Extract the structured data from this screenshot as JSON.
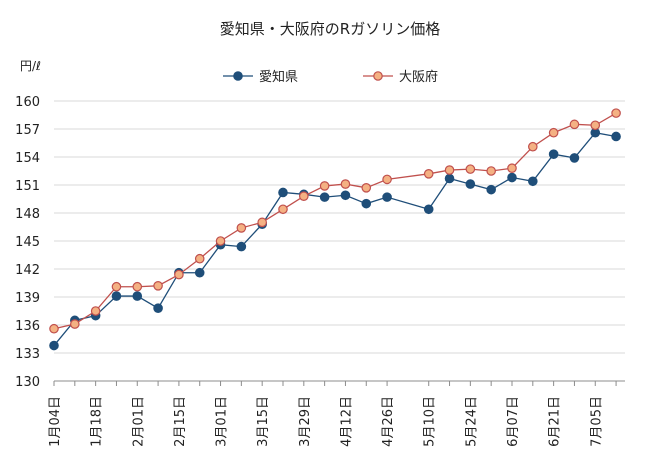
{
  "chart_data": {
    "type": "line",
    "title": "愛知県・大阪府のRガソリン価格",
    "ylabel": "円/ℓ",
    "ylim": [
      130,
      160
    ],
    "yticks": [
      130,
      133,
      136,
      139,
      142,
      145,
      148,
      151,
      154,
      157,
      160
    ],
    "grid": true,
    "legend_position": "top",
    "x_tick_labels": [
      "1月04日",
      "1月18日",
      "2月01日",
      "2月15日",
      "3月01日",
      "3月15日",
      "3月29日",
      "4月12日",
      "4月26日",
      "5月10日",
      "5月24日",
      "6月07日",
      "6月21日",
      "7月05日"
    ],
    "x_tick_days": [
      0,
      14,
      28,
      42,
      56,
      70,
      84,
      98,
      112,
      126,
      140,
      154,
      168,
      182
    ],
    "x": [
      0,
      7,
      14,
      21,
      28,
      35,
      42,
      49,
      56,
      63,
      70,
      77,
      84,
      91,
      98,
      105,
      112,
      126,
      133,
      140,
      147,
      154,
      161,
      168,
      175,
      182,
      189
    ],
    "series": [
      {
        "name": "愛知県",
        "color": "#1f4e79",
        "marker_fill": "#1f4e79",
        "values": [
          133.8,
          136.5,
          137.0,
          139.1,
          139.1,
          137.8,
          141.6,
          141.6,
          144.6,
          144.4,
          146.8,
          150.2,
          150.0,
          149.7,
          149.9,
          149.0,
          149.7,
          148.4,
          151.7,
          151.1,
          150.5,
          151.8,
          151.4,
          154.3,
          153.9,
          156.6,
          156.2
        ]
      },
      {
        "name": "大阪府",
        "color": "#c0504d",
        "marker_fill": "#f4b183",
        "values": [
          135.6,
          136.1,
          137.5,
          140.1,
          140.1,
          140.2,
          141.4,
          143.1,
          145.0,
          146.4,
          147.0,
          148.4,
          149.8,
          150.9,
          151.1,
          150.7,
          151.6,
          152.2,
          152.6,
          152.7,
          152.5,
          152.8,
          155.1,
          156.6,
          157.5,
          157.4,
          158.7
        ]
      }
    ]
  }
}
